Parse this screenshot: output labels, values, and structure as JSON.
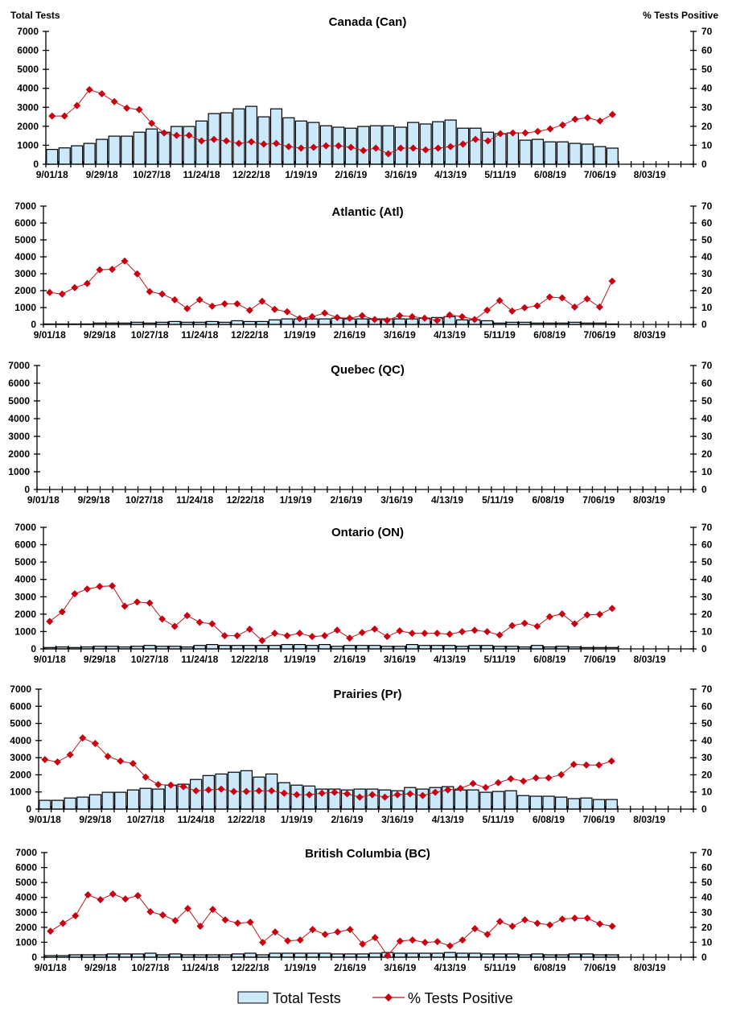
{
  "header": {
    "left_axis_title": "Total Tests",
    "right_axis_title": "% Tests Positive"
  },
  "legend": {
    "bars_label": "Total Tests",
    "line_label": "% Tests Positive",
    "position": "bottom"
  },
  "colors": {
    "bar_fill": "#cce9fa",
    "bar_stroke": "#000000",
    "line": "#c0141c",
    "marker": "#c80010"
  },
  "x_tick_labels": [
    "9/01/18",
    "9/29/18",
    "10/27/18",
    "11/24/18",
    "12/22/18",
    "1/19/19",
    "2/16/19",
    "3/16/19",
    "4/13/19",
    "5/11/19",
    "6/08/19",
    "7/06/19",
    "8/03/19"
  ],
  "left_ticks": [
    "0",
    "1000",
    "2000",
    "3000",
    "4000",
    "5000",
    "6000",
    "7000"
  ],
  "right_ticks": [
    "0",
    "10",
    "20",
    "30",
    "40",
    "50",
    "60",
    "70"
  ],
  "chart_data": [
    {
      "type": "bar+line",
      "title": "Canada (Can)",
      "ylabel": "Total Tests",
      "y2label": "% Tests Positive",
      "ylim": [
        0,
        7000
      ],
      "y2lim": [
        0,
        70
      ],
      "xlim": [
        "9/01/18",
        "8/24/19"
      ],
      "grid": false,
      "x": [
        "9/01/18",
        "9/08/18",
        "9/15/18",
        "9/22/18",
        "9/29/18",
        "10/06/18",
        "10/13/18",
        "10/20/18",
        "10/27/18",
        "11/03/18",
        "11/10/18",
        "11/17/18",
        "11/24/18",
        "12/01/18",
        "12/08/18",
        "12/15/18",
        "12/22/18",
        "12/29/18",
        "1/05/19",
        "1/12/19",
        "1/19/19",
        "1/26/19",
        "2/02/19",
        "2/09/19",
        "2/16/19",
        "2/23/19",
        "3/02/19",
        "3/09/19",
        "3/16/19",
        "3/23/19",
        "3/30/19",
        "4/06/19",
        "4/13/19",
        "4/20/19",
        "4/27/19",
        "5/04/19",
        "5/11/19",
        "5/18/19",
        "5/25/19",
        "6/01/19",
        "6/08/19",
        "6/15/19",
        "6/22/19",
        "6/29/19",
        "7/06/19",
        "7/13/19"
      ],
      "series": [
        {
          "name": "Total Tests",
          "type": "bar",
          "values": [
            780,
            860,
            970,
            1100,
            1310,
            1480,
            1480,
            1690,
            1860,
            1690,
            1990,
            1990,
            2280,
            2670,
            2710,
            2920,
            3050,
            2500,
            2920,
            2450,
            2280,
            2200,
            2030,
            1950,
            1900,
            1990,
            2030,
            2030,
            1950,
            2200,
            2120,
            2240,
            2330,
            1900,
            1900,
            1690,
            1610,
            1650,
            1270,
            1310,
            1180,
            1180,
            1100,
            1060,
            930,
            850
          ]
        },
        {
          "name": "% Tests Positive",
          "type": "line",
          "axis": "right",
          "values": [
            25.4,
            25.4,
            30.9,
            39.3,
            37.1,
            33.0,
            29.6,
            28.8,
            21.6,
            16.5,
            15.2,
            15.2,
            12.3,
            13.1,
            12.3,
            11.0,
            11.8,
            10.6,
            11.0,
            9.3,
            8.5,
            8.9,
            9.7,
            9.7,
            8.9,
            7.2,
            8.5,
            5.5,
            8.5,
            8.5,
            7.6,
            8.5,
            9.3,
            10.6,
            13.1,
            12.3,
            16.1,
            16.5,
            16.5,
            17.3,
            18.6,
            20.7,
            23.7,
            24.5,
            22.8,
            26.2
          ]
        }
      ]
    },
    {
      "type": "bar+line",
      "title": "Atlantic (Atl)",
      "ylim": [
        0,
        7000
      ],
      "y2lim": [
        0,
        70
      ],
      "grid": false,
      "series": [
        {
          "name": "Total Tests",
          "type": "bar",
          "values": [
            30,
            30,
            30,
            30,
            80,
            80,
            80,
            130,
            80,
            130,
            170,
            130,
            130,
            170,
            130,
            220,
            170,
            170,
            270,
            330,
            330,
            330,
            330,
            370,
            330,
            330,
            330,
            330,
            330,
            330,
            370,
            410,
            460,
            270,
            270,
            220,
            80,
            130,
            130,
            80,
            80,
            80,
            130,
            80,
            80,
            30
          ]
        },
        {
          "name": "% Tests Positive",
          "type": "line",
          "axis": "right",
          "values": [
            18.9,
            18.0,
            21.8,
            24.2,
            32.3,
            32.6,
            37.5,
            29.9,
            19.4,
            18.0,
            14.6,
            9.4,
            14.6,
            10.8,
            12.2,
            12.2,
            8.4,
            13.7,
            8.9,
            7.5,
            3.5,
            4.6,
            6.7,
            4.1,
            3.7,
            5.2,
            2.9,
            2.4,
            5.2,
            4.6,
            3.7,
            2.4,
            5.6,
            4.6,
            2.9,
            8.4,
            14.1,
            7.9,
            9.9,
            11.0,
            16.2,
            15.7,
            10.3,
            15.1,
            10.3,
            25.6
          ]
        }
      ]
    },
    {
      "type": "bar+line",
      "title": "Quebec (QC)",
      "ylim": [
        0,
        7000
      ],
      "y2lim": [
        0,
        70
      ],
      "grid": false,
      "series": [
        {
          "name": "Total Tests",
          "type": "bar",
          "values": []
        },
        {
          "name": "% Tests Positive",
          "type": "line",
          "axis": "right",
          "values": []
        }
      ]
    },
    {
      "type": "bar+line",
      "title": "Ontario (ON)",
      "ylim": [
        0,
        7000
      ],
      "y2lim": [
        0,
        70
      ],
      "grid": false,
      "series": [
        {
          "name": "Total Tests",
          "type": "bar",
          "values": [
            80,
            110,
            80,
            110,
            150,
            150,
            110,
            150,
            200,
            150,
            150,
            110,
            200,
            250,
            200,
            200,
            200,
            200,
            200,
            250,
            250,
            200,
            250,
            150,
            200,
            200,
            200,
            150,
            150,
            250,
            200,
            200,
            200,
            150,
            200,
            200,
            150,
            150,
            110,
            200,
            110,
            150,
            110,
            80,
            80,
            80
          ]
        },
        {
          "name": "% Tests Positive",
          "type": "line",
          "axis": "right",
          "values": [
            15.8,
            21.3,
            31.7,
            34.5,
            35.9,
            36.3,
            24.6,
            27.0,
            26.4,
            17.2,
            13.0,
            19.2,
            15.3,
            14.4,
            7.6,
            7.6,
            11.3,
            4.8,
            9.0,
            7.6,
            9.0,
            7.1,
            7.6,
            10.8,
            6.2,
            9.4,
            11.4,
            7.1,
            10.4,
            9.0,
            9.0,
            9.0,
            8.5,
            9.9,
            10.7,
            9.9,
            8.0,
            13.4,
            14.8,
            13.0,
            18.5,
            20.1,
            14.5,
            19.6,
            19.9,
            23.3
          ]
        }
      ]
    },
    {
      "type": "bar+line",
      "title": "Prairies (Pr)",
      "ylim": [
        0,
        7000
      ],
      "y2lim": [
        0,
        70
      ],
      "grid": false,
      "series": [
        {
          "name": "Total Tests",
          "type": "bar",
          "values": [
            510,
            510,
            650,
            700,
            840,
            980,
            980,
            1120,
            1210,
            1170,
            1400,
            1450,
            1730,
            1960,
            2050,
            2150,
            2240,
            1870,
            2050,
            1540,
            1400,
            1350,
            1170,
            1170,
            1120,
            1170,
            1170,
            1120,
            1070,
            1260,
            1170,
            1260,
            1310,
            1120,
            1120,
            980,
            1030,
            1070,
            790,
            750,
            750,
            700,
            610,
            650,
            560,
            560
          ]
        },
        {
          "name": "% Tests Positive",
          "type": "line",
          "axis": "right",
          "values": [
            28.9,
            27.5,
            31.7,
            41.5,
            38.3,
            30.8,
            28.0,
            26.6,
            18.7,
            14.3,
            14.0,
            13.1,
            10.7,
            11.2,
            11.7,
            10.3,
            10.3,
            10.7,
            10.7,
            9.3,
            8.4,
            8.4,
            9.3,
            9.8,
            8.9,
            7.0,
            8.4,
            7.0,
            8.4,
            8.9,
            7.9,
            9.8,
            11.2,
            12.1,
            14.9,
            12.6,
            15.4,
            17.7,
            16.3,
            18.2,
            18.2,
            20.1,
            26.1,
            25.7,
            25.7,
            28.0
          ]
        }
      ]
    },
    {
      "type": "bar+line",
      "title": "British Columbia (BC)",
      "ylim": [
        0,
        7000
      ],
      "y2lim": [
        0,
        70
      ],
      "grid": false,
      "series": [
        {
          "name": "Total Tests",
          "type": "bar",
          "values": [
            110,
            110,
            160,
            160,
            160,
            220,
            220,
            220,
            270,
            160,
            220,
            160,
            160,
            160,
            160,
            220,
            270,
            160,
            270,
            270,
            270,
            270,
            270,
            220,
            220,
            220,
            270,
            320,
            270,
            270,
            270,
            270,
            320,
            270,
            270,
            220,
            220,
            220,
            160,
            220,
            160,
            160,
            220,
            220,
            160,
            160
          ]
        },
        {
          "name": "% Tests Positive",
          "type": "line",
          "axis": "right",
          "values": [
            17.4,
            22.7,
            27.7,
            41.7,
            38.5,
            42.3,
            39.0,
            41.2,
            30.4,
            28.2,
            24.5,
            32.6,
            20.7,
            32.0,
            25.0,
            22.8,
            23.4,
            9.9,
            16.9,
            11.0,
            11.5,
            18.5,
            15.3,
            16.9,
            18.5,
            8.8,
            13.1,
            1.1,
            10.8,
            11.5,
            9.9,
            10.4,
            7.6,
            11.5,
            19.1,
            15.3,
            23.9,
            20.7,
            25.0,
            22.7,
            21.6,
            25.5,
            26.1,
            26.1,
            22.3,
            20.7
          ]
        }
      ]
    }
  ]
}
